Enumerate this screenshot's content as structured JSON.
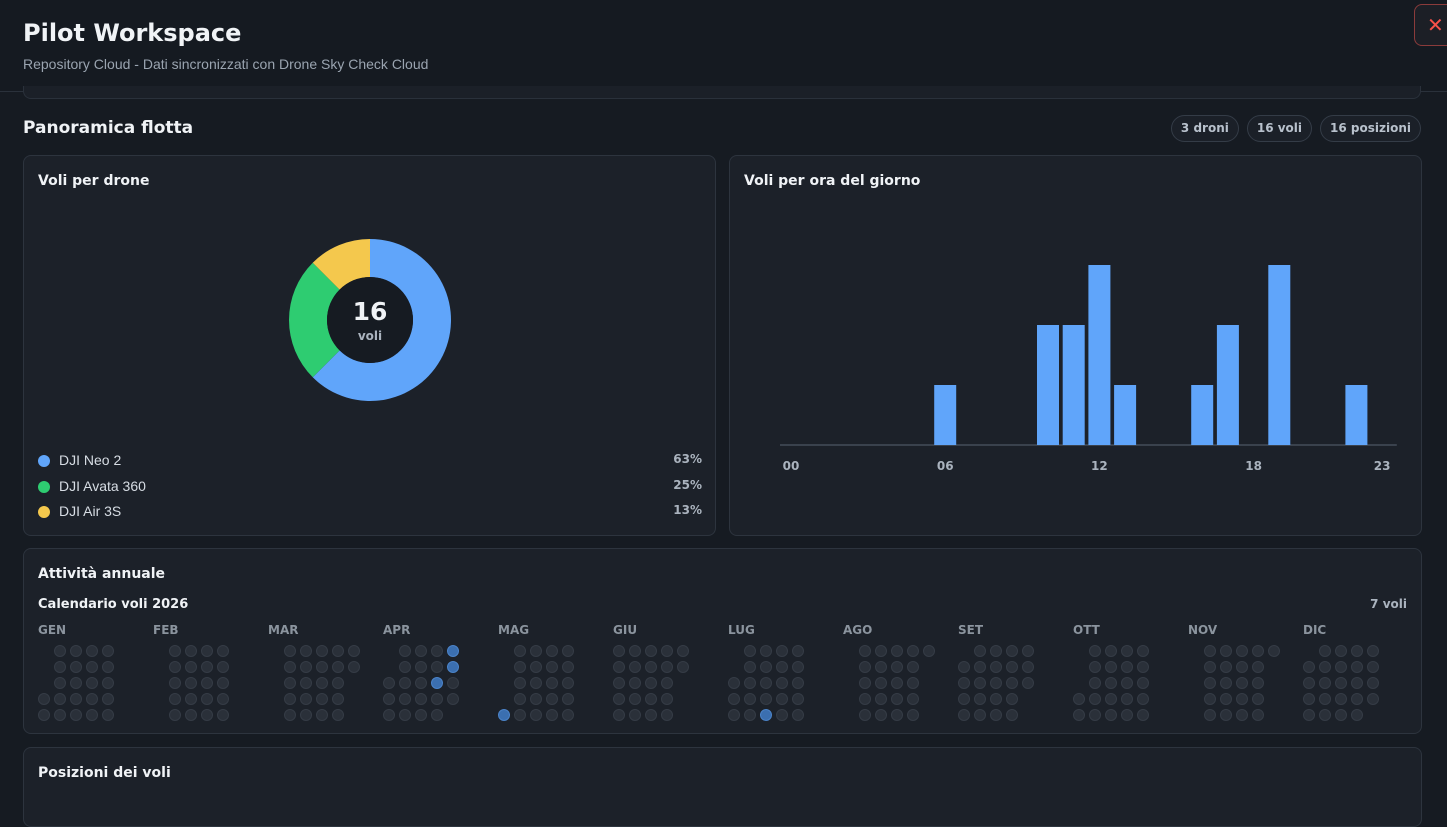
{
  "header": {
    "title": "Pilot Workspace",
    "subtitle": "Repository Cloud - Dati sincronizzati con Drone Sky Check Cloud",
    "close_label": "✕"
  },
  "fleet": {
    "title": "Panoramica flotta",
    "chips": [
      "3 droni",
      "16 voli",
      "16 posizioni"
    ]
  },
  "donut_card": {
    "title": "Voli per drone",
    "center_value": "16",
    "center_label": "voli"
  },
  "hour_card": {
    "title": "Voli per ora del giorno"
  },
  "annual": {
    "title": "Attività annuale",
    "calendar_title": "Calendario voli 2026",
    "count_label": "7 voli",
    "months": [
      "GEN",
      "FEB",
      "MAR",
      "APR",
      "MAG",
      "GIU",
      "LUG",
      "AGO",
      "SET",
      "OTT",
      "NOV",
      "DIC"
    ]
  },
  "positions": {
    "title": "Posizioni dei voli"
  },
  "colors": {
    "neo": "#60a5fa",
    "avata": "#2ecc71",
    "air": "#f4c84d",
    "bar": "#60a5fa"
  },
  "chart_data": [
    {
      "type": "pie",
      "title": "Voli per drone",
      "categories": [
        "DJI Neo 2",
        "DJI Avata 360",
        "DJI Air 3S"
      ],
      "values": [
        10,
        4,
        2
      ],
      "percent_labels": [
        "63%",
        "25%",
        "13%"
      ],
      "colors": [
        "#60a5fa",
        "#2ecc71",
        "#f4c84d"
      ]
    },
    {
      "type": "bar",
      "title": "Voli per ora del giorno",
      "categories": [
        "00",
        "01",
        "02",
        "03",
        "04",
        "05",
        "06",
        "07",
        "08",
        "09",
        "10",
        "11",
        "12",
        "13",
        "14",
        "15",
        "16",
        "17",
        "18",
        "19",
        "20",
        "21",
        "22",
        "23"
      ],
      "tick_labels": [
        "00",
        "06",
        "12",
        "18",
        "23"
      ],
      "values": [
        0,
        0,
        0,
        0,
        0,
        0,
        1,
        0,
        0,
        0,
        2,
        2,
        3,
        1,
        0,
        0,
        1,
        2,
        0,
        3,
        0,
        0,
        1,
        0
      ],
      "ylim": [
        0,
        3
      ]
    }
  ]
}
